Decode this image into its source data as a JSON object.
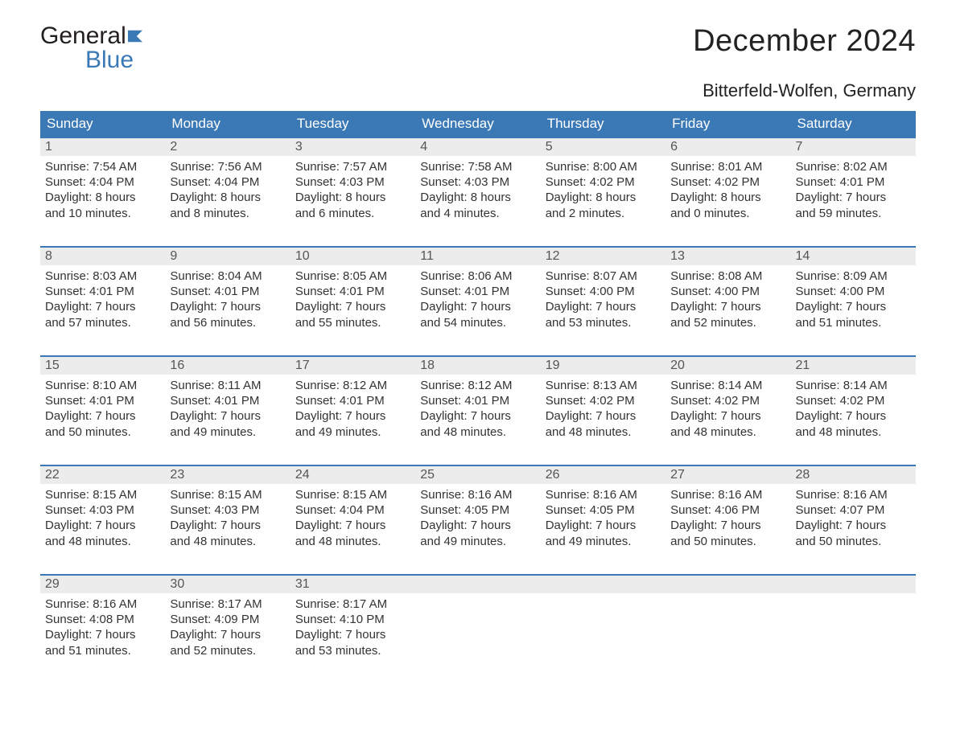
{
  "brand": {
    "name_part1": "General",
    "name_part2": "Blue"
  },
  "title": "December 2024",
  "location": "Bitterfeld-Wolfen, Germany",
  "colors": {
    "header_bg": "#3a78b6",
    "daynum_bg": "#ececec",
    "text": "#333333",
    "brand_black": "#231f20",
    "brand_blue": "#3a78b6",
    "background": "#ffffff"
  },
  "typography": {
    "title_fontsize": 38,
    "location_fontsize": 22,
    "header_fontsize": 17,
    "body_fontsize": 15,
    "daynum_fontsize": 16
  },
  "layout": {
    "first_weekday": "Sunday",
    "cols": 7,
    "rows": 5
  },
  "weekdays": [
    "Sunday",
    "Monday",
    "Tuesday",
    "Wednesday",
    "Thursday",
    "Friday",
    "Saturday"
  ],
  "days": [
    {
      "n": 1,
      "sunrise": "7:54 AM",
      "sunset": "4:04 PM",
      "daylight_h": 8,
      "daylight_m": 10
    },
    {
      "n": 2,
      "sunrise": "7:56 AM",
      "sunset": "4:04 PM",
      "daylight_h": 8,
      "daylight_m": 8
    },
    {
      "n": 3,
      "sunrise": "7:57 AM",
      "sunset": "4:03 PM",
      "daylight_h": 8,
      "daylight_m": 6
    },
    {
      "n": 4,
      "sunrise": "7:58 AM",
      "sunset": "4:03 PM",
      "daylight_h": 8,
      "daylight_m": 4
    },
    {
      "n": 5,
      "sunrise": "8:00 AM",
      "sunset": "4:02 PM",
      "daylight_h": 8,
      "daylight_m": 2
    },
    {
      "n": 6,
      "sunrise": "8:01 AM",
      "sunset": "4:02 PM",
      "daylight_h": 8,
      "daylight_m": 0
    },
    {
      "n": 7,
      "sunrise": "8:02 AM",
      "sunset": "4:01 PM",
      "daylight_h": 7,
      "daylight_m": 59
    },
    {
      "n": 8,
      "sunrise": "8:03 AM",
      "sunset": "4:01 PM",
      "daylight_h": 7,
      "daylight_m": 57
    },
    {
      "n": 9,
      "sunrise": "8:04 AM",
      "sunset": "4:01 PM",
      "daylight_h": 7,
      "daylight_m": 56
    },
    {
      "n": 10,
      "sunrise": "8:05 AM",
      "sunset": "4:01 PM",
      "daylight_h": 7,
      "daylight_m": 55
    },
    {
      "n": 11,
      "sunrise": "8:06 AM",
      "sunset": "4:01 PM",
      "daylight_h": 7,
      "daylight_m": 54
    },
    {
      "n": 12,
      "sunrise": "8:07 AM",
      "sunset": "4:00 PM",
      "daylight_h": 7,
      "daylight_m": 53
    },
    {
      "n": 13,
      "sunrise": "8:08 AM",
      "sunset": "4:00 PM",
      "daylight_h": 7,
      "daylight_m": 52
    },
    {
      "n": 14,
      "sunrise": "8:09 AM",
      "sunset": "4:00 PM",
      "daylight_h": 7,
      "daylight_m": 51
    },
    {
      "n": 15,
      "sunrise": "8:10 AM",
      "sunset": "4:01 PM",
      "daylight_h": 7,
      "daylight_m": 50
    },
    {
      "n": 16,
      "sunrise": "8:11 AM",
      "sunset": "4:01 PM",
      "daylight_h": 7,
      "daylight_m": 49
    },
    {
      "n": 17,
      "sunrise": "8:12 AM",
      "sunset": "4:01 PM",
      "daylight_h": 7,
      "daylight_m": 49
    },
    {
      "n": 18,
      "sunrise": "8:12 AM",
      "sunset": "4:01 PM",
      "daylight_h": 7,
      "daylight_m": 48
    },
    {
      "n": 19,
      "sunrise": "8:13 AM",
      "sunset": "4:02 PM",
      "daylight_h": 7,
      "daylight_m": 48
    },
    {
      "n": 20,
      "sunrise": "8:14 AM",
      "sunset": "4:02 PM",
      "daylight_h": 7,
      "daylight_m": 48
    },
    {
      "n": 21,
      "sunrise": "8:14 AM",
      "sunset": "4:02 PM",
      "daylight_h": 7,
      "daylight_m": 48
    },
    {
      "n": 22,
      "sunrise": "8:15 AM",
      "sunset": "4:03 PM",
      "daylight_h": 7,
      "daylight_m": 48
    },
    {
      "n": 23,
      "sunrise": "8:15 AM",
      "sunset": "4:03 PM",
      "daylight_h": 7,
      "daylight_m": 48
    },
    {
      "n": 24,
      "sunrise": "8:15 AM",
      "sunset": "4:04 PM",
      "daylight_h": 7,
      "daylight_m": 48
    },
    {
      "n": 25,
      "sunrise": "8:16 AM",
      "sunset": "4:05 PM",
      "daylight_h": 7,
      "daylight_m": 49
    },
    {
      "n": 26,
      "sunrise": "8:16 AM",
      "sunset": "4:05 PM",
      "daylight_h": 7,
      "daylight_m": 49
    },
    {
      "n": 27,
      "sunrise": "8:16 AM",
      "sunset": "4:06 PM",
      "daylight_h": 7,
      "daylight_m": 50
    },
    {
      "n": 28,
      "sunrise": "8:16 AM",
      "sunset": "4:07 PM",
      "daylight_h": 7,
      "daylight_m": 50
    },
    {
      "n": 29,
      "sunrise": "8:16 AM",
      "sunset": "4:08 PM",
      "daylight_h": 7,
      "daylight_m": 51
    },
    {
      "n": 30,
      "sunrise": "8:17 AM",
      "sunset": "4:09 PM",
      "daylight_h": 7,
      "daylight_m": 52
    },
    {
      "n": 31,
      "sunrise": "8:17 AM",
      "sunset": "4:10 PM",
      "daylight_h": 7,
      "daylight_m": 53
    }
  ],
  "labels": {
    "sunrise": "Sunrise:",
    "sunset": "Sunset:",
    "daylight_prefix": "Daylight:",
    "hours_word": "hours",
    "and_word": "and",
    "minutes_word": "minutes."
  }
}
